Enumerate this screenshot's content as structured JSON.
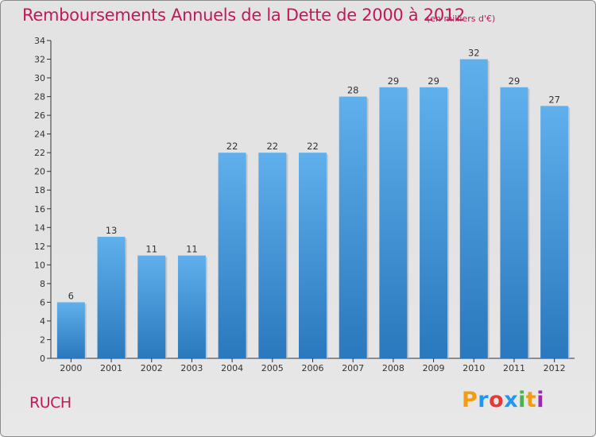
{
  "header": {
    "title": "Remboursements Annuels de la Dette de 2000 à 2012",
    "unit": "(en milliers d'€)"
  },
  "footer": {
    "place": "RUCH",
    "logo_text": "Proxiti",
    "logo_colors": [
      "#f39c12",
      "#2196f3",
      "#e53935",
      "#2196f3",
      "#4caf50",
      "#f39c12",
      "#9c27b0"
    ]
  },
  "colors": {
    "title": "#c2185b",
    "bar_top": "#5fb0ec",
    "bar_bottom": "#2a78bd",
    "axis": "#333333"
  },
  "chart_data": {
    "type": "bar",
    "title": "Remboursements Annuels de la Dette de 2000 à 2012",
    "xlabel": "",
    "ylabel": "",
    "categories": [
      "2000",
      "2001",
      "2002",
      "2003",
      "2004",
      "2005",
      "2006",
      "2007",
      "2008",
      "2009",
      "2010",
      "2011",
      "2012"
    ],
    "values": [
      6,
      13,
      11,
      11,
      22,
      22,
      22,
      28,
      29,
      29,
      32,
      29,
      27
    ],
    "ylim": [
      0,
      34
    ],
    "yticks": [
      0,
      2,
      4,
      6,
      8,
      10,
      12,
      14,
      16,
      18,
      20,
      22,
      24,
      26,
      28,
      30,
      32,
      34
    ],
    "grid": false,
    "legend": "none"
  }
}
